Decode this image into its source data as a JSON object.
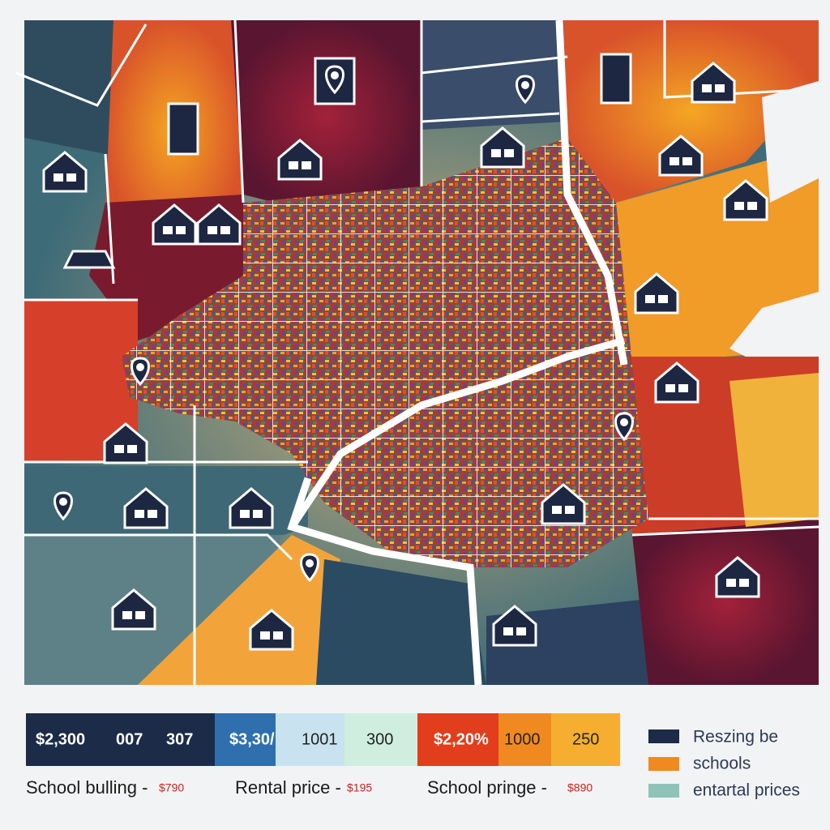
{
  "legend_bar": {
    "cells": [
      "$2,300",
      "007",
      "307",
      "$3,30/",
      "1001",
      "300",
      "$2,20%",
      "1000",
      "250"
    ]
  },
  "captions": [
    {
      "label": "School bulling -",
      "price": "$790"
    },
    {
      "label": "Rental price -",
      "price": "$195"
    },
    {
      "label": "School pringe -",
      "price": "$890"
    }
  ],
  "legend": [
    "Reszing be",
    "schools",
    "entartal prices"
  ]
}
